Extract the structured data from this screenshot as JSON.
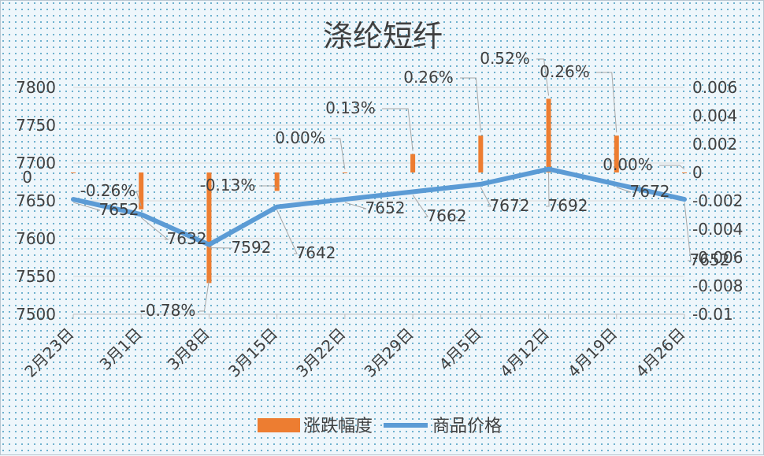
{
  "chart_data": {
    "type": "bar+line",
    "title": "涤纶短纤",
    "categories": [
      "2月23日",
      "3月1日",
      "3月8日",
      "3月15日",
      "3月22日",
      "3月29日",
      "4月5日",
      "4月12日",
      "4月19日",
      "4月26日"
    ],
    "series": [
      {
        "name": "涨跌幅度",
        "type": "bar",
        "axis": "right",
        "values": [
          0,
          -0.0026,
          -0.0078,
          -0.0013,
          0.0,
          0.0013,
          0.0026,
          0.0052,
          0.0026,
          0.0
        ],
        "labels": [
          "",
          "-0.26%",
          "-0.78%",
          "-0.13%",
          "0.00%",
          "0.13%",
          "0.26%",
          "0.52%",
          "0.26%",
          "0.00%"
        ],
        "color": "#ed7d31"
      },
      {
        "name": "商品价格",
        "type": "line",
        "axis": "left",
        "values": [
          7652,
          7632,
          7592,
          7642,
          7652,
          7662,
          7672,
          7692,
          7672,
          7652
        ],
        "labels": [
          "7652",
          "7632",
          "7592",
          "7642",
          "7652",
          "7662",
          "7672",
          "7692",
          "7672",
          "7652"
        ],
        "color": "#5b9bd5"
      }
    ],
    "left_axis": {
      "ticks": [
        "7500",
        "7550",
        "7600",
        "7650",
        "7700",
        "7750",
        "7800"
      ],
      "range": [
        7500,
        7800
      ],
      "extra_tick": "0"
    },
    "right_axis": {
      "ticks": [
        "-0.01",
        "-0.008",
        "-0.006",
        "-0.004",
        "-0.002",
        "0",
        "0.002",
        "0.004",
        "0.006"
      ],
      "range": [
        -0.01,
        0.006
      ]
    },
    "legend": {
      "position": "bottom",
      "items": [
        "涨跌幅度",
        "商品价格"
      ]
    },
    "grid": true
  }
}
